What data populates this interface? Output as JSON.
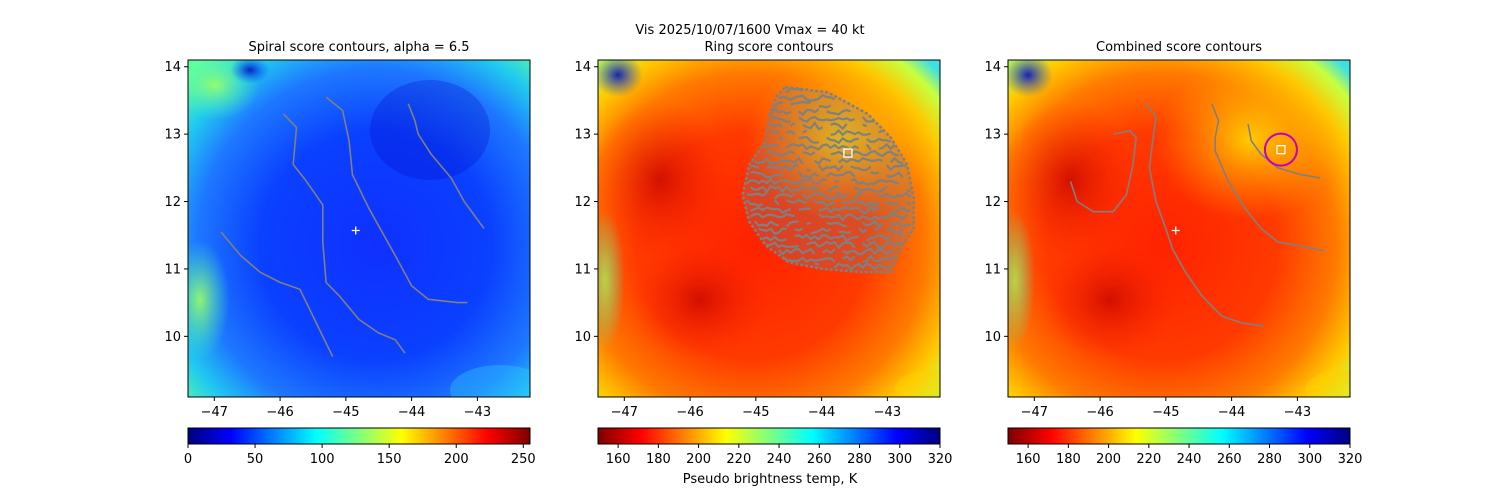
{
  "suptitle_line1": "Vis  2025/10/07/1600    Vmax = 40 kt",
  "colorbar_label": "Pseudo brightness temp, K",
  "colors": {
    "contour": "#808080",
    "marker": "#ffffff",
    "ring": "#c000c0"
  },
  "chart_data": [
    {
      "type": "heatmap",
      "title": "Spiral score contours, alpha =  6.5",
      "xlim": [
        -47.4,
        -42.2
      ],
      "ylim": [
        9.1,
        14.1
      ],
      "xticks": [
        -47,
        -46,
        -45,
        -44,
        -43
      ],
      "yticks": [
        10,
        11,
        12,
        13,
        14
      ],
      "colormap": "jet",
      "colorbar": {
        "min": 0,
        "max": 255,
        "ticks": [
          0,
          50,
          100,
          150,
          200,
          250
        ]
      },
      "center_marker": {
        "lon": -44.85,
        "lat": 11.57
      },
      "contours": [
        [
          [
            -46.9,
            11.55
          ],
          [
            -46.6,
            11.2
          ],
          [
            -46.3,
            10.95
          ],
          [
            -46.0,
            10.8
          ],
          [
            -45.7,
            10.7
          ],
          [
            -45.55,
            10.4
          ],
          [
            -45.4,
            10.1
          ],
          [
            -45.2,
            9.7
          ]
        ],
        [
          [
            -45.95,
            13.3
          ],
          [
            -45.75,
            13.1
          ],
          [
            -45.8,
            12.55
          ],
          [
            -45.6,
            12.3
          ],
          [
            -45.35,
            11.95
          ],
          [
            -45.35,
            11.4
          ],
          [
            -45.3,
            10.8
          ],
          [
            -45.1,
            10.6
          ],
          [
            -44.8,
            10.25
          ],
          [
            -44.5,
            10.05
          ],
          [
            -44.25,
            9.95
          ],
          [
            -44.1,
            9.75
          ]
        ],
        [
          [
            -45.3,
            13.55
          ],
          [
            -45.05,
            13.35
          ],
          [
            -44.95,
            12.9
          ],
          [
            -44.9,
            12.4
          ],
          [
            -44.65,
            11.9
          ],
          [
            -44.45,
            11.55
          ],
          [
            -44.25,
            11.2
          ],
          [
            -44.0,
            10.75
          ],
          [
            -43.75,
            10.55
          ],
          [
            -43.3,
            10.5
          ],
          [
            -43.15,
            10.5
          ]
        ],
        [
          [
            -44.05,
            13.45
          ],
          [
            -43.95,
            13.2
          ],
          [
            -43.9,
            13.0
          ],
          [
            -43.7,
            12.7
          ],
          [
            -43.4,
            12.35
          ],
          [
            -43.2,
            12.0
          ],
          [
            -42.9,
            11.6
          ]
        ]
      ]
    },
    {
      "type": "heatmap",
      "title": "Ring score contours",
      "xlim": [
        -47.4,
        -42.2
      ],
      "ylim": [
        9.1,
        14.1
      ],
      "xticks": [
        -47,
        -46,
        -45,
        -44,
        -43
      ],
      "yticks": [
        10,
        11,
        12,
        13,
        14
      ],
      "colormap": "jet_reversed",
      "colorbar": {
        "min": 150,
        "max": 320,
        "ticks": [
          160,
          180,
          200,
          220,
          240,
          260,
          280,
          300,
          320
        ]
      },
      "center_marker": {
        "lon": -43.6,
        "lat": 12.72
      },
      "contour_region": [
        [
          -44.55,
          13.7
        ],
        [
          -43.9,
          13.62
        ],
        [
          -43.3,
          13.3
        ],
        [
          -42.95,
          12.95
        ],
        [
          -42.7,
          12.55
        ],
        [
          -42.6,
          12.05
        ],
        [
          -42.6,
          11.6
        ],
        [
          -42.8,
          11.3
        ],
        [
          -42.95,
          10.95
        ],
        [
          -43.35,
          10.95
        ],
        [
          -44.0,
          11.0
        ],
        [
          -44.5,
          11.1
        ],
        [
          -44.85,
          11.35
        ],
        [
          -45.1,
          11.7
        ],
        [
          -45.2,
          12.1
        ],
        [
          -45.1,
          12.55
        ],
        [
          -44.85,
          12.9
        ],
        [
          -44.8,
          13.25
        ],
        [
          -44.7,
          13.55
        ]
      ]
    },
    {
      "type": "heatmap",
      "title": "Combined score contours",
      "xlim": [
        -47.4,
        -42.2
      ],
      "ylim": [
        9.1,
        14.1
      ],
      "xticks": [
        -47,
        -46,
        -45,
        -44,
        -43
      ],
      "yticks": [
        10,
        11,
        12,
        13,
        14
      ],
      "colormap": "jet_reversed",
      "colorbar": {
        "min": 150,
        "max": 320,
        "ticks": [
          160,
          180,
          200,
          220,
          240,
          260,
          280,
          300,
          320
        ]
      },
      "center_marker": {
        "lon": -44.85,
        "lat": 11.57
      },
      "ring_center": {
        "lon": -43.25,
        "lat": 12.77
      },
      "square_marker": {
        "lon": -43.25,
        "lat": 12.77
      },
      "contours": [
        [
          [
            -45.8,
            13.0
          ],
          [
            -45.55,
            13.05
          ],
          [
            -45.45,
            12.95
          ],
          [
            -45.5,
            12.55
          ],
          [
            -45.6,
            12.1
          ],
          [
            -45.8,
            11.85
          ],
          [
            -46.1,
            11.85
          ],
          [
            -46.35,
            12.0
          ],
          [
            -46.45,
            12.3
          ]
        ],
        [
          [
            -45.3,
            13.45
          ],
          [
            -45.15,
            13.25
          ],
          [
            -45.2,
            12.9
          ],
          [
            -45.25,
            12.5
          ],
          [
            -45.15,
            12.0
          ],
          [
            -45.0,
            11.6
          ],
          [
            -44.9,
            11.3
          ],
          [
            -44.7,
            10.95
          ],
          [
            -44.45,
            10.6
          ],
          [
            -44.15,
            10.3
          ],
          [
            -43.85,
            10.2
          ],
          [
            -43.5,
            10.15
          ]
        ],
        [
          [
            -44.3,
            13.45
          ],
          [
            -44.2,
            13.2
          ],
          [
            -44.25,
            12.95
          ],
          [
            -44.25,
            12.75
          ],
          [
            -44.05,
            12.3
          ],
          [
            -43.8,
            11.9
          ],
          [
            -43.55,
            11.6
          ],
          [
            -43.3,
            11.4
          ],
          [
            -43.0,
            11.35
          ],
          [
            -42.6,
            11.27
          ]
        ],
        [
          [
            -43.75,
            13.15
          ],
          [
            -43.7,
            12.9
          ],
          [
            -43.55,
            12.7
          ],
          [
            -43.3,
            12.5
          ],
          [
            -42.95,
            12.4
          ],
          [
            -42.65,
            12.35
          ]
        ]
      ]
    }
  ]
}
